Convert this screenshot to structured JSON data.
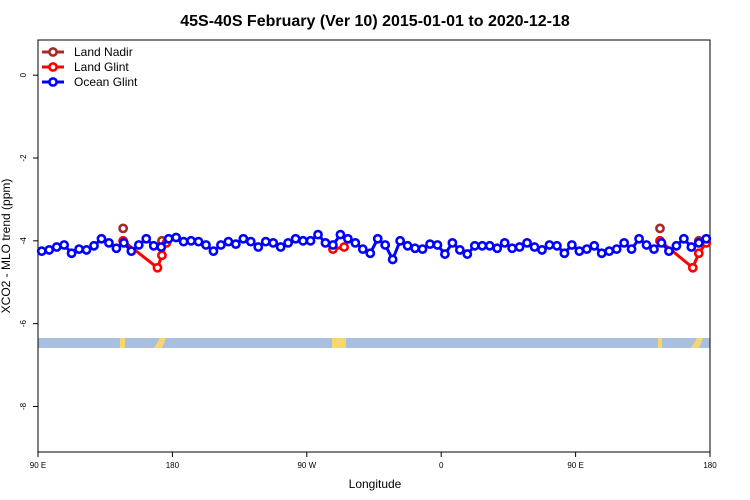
{
  "chart_data": {
    "type": "line",
    "title": "45S-40S February (Ver 10)   2015-01-01 to 2020-12-18",
    "x_label": "Longitude",
    "y_label": "XCO2 - MLO trend (ppm)",
    "xlim": [
      90,
      540
    ],
    "xticks": [
      {
        "value": 90,
        "label": "90 E"
      },
      {
        "value": 180,
        "label": "180"
      },
      {
        "value": 270,
        "label": "90 W"
      },
      {
        "value": 360,
        "label": "0"
      },
      {
        "value": 450,
        "label": "90 E"
      },
      {
        "value": 540,
        "label": "180"
      }
    ],
    "ylim": [
      -9.1,
      0.85
    ],
    "yticks": [
      0,
      -2,
      -4,
      -6,
      -8
    ],
    "legend": "top-left",
    "series": [
      {
        "name": "Land Nadir",
        "color": "#a52a2a",
        "x": [
          147,
          160,
          173,
          490,
          506.5,
          520,
          532.5
        ],
        "values": [
          -3.7,
          null,
          -4.0,
          null,
          -3.7,
          null,
          -4.0
        ]
      },
      {
        "name": "Land Glint",
        "color": "#ff0000",
        "x": [
          147,
          170,
          173,
          176,
          230,
          287.5,
          295,
          400,
          506.5,
          528.5,
          532.5,
          537.5
        ],
        "values": [
          -4.0,
          -4.65,
          -4.35,
          -4.05,
          null,
          -4.2,
          -4.15,
          null,
          -4.0,
          -4.65,
          -4.3,
          -4.05
        ]
      },
      {
        "name": "Ocean Glint",
        "color": "#0000ff",
        "x": [
          92.5,
          97.5,
          102.5,
          107.5,
          112.5,
          117.5,
          122.5,
          127.5,
          132.5,
          137.5,
          142.5,
          147.5,
          152.5,
          157.5,
          162.5,
          167.5,
          172.5,
          177.5,
          182.5,
          187.5,
          192.5,
          197.5,
          202.5,
          207.5,
          212.5,
          217.5,
          222.5,
          227.5,
          232.5,
          237.5,
          242.5,
          247.5,
          252.5,
          257.5,
          262.5,
          267.5,
          272.5,
          277.5,
          282.5,
          287.5,
          292.5,
          297.5,
          302.5,
          307.5,
          312.5,
          317.5,
          322.5,
          327.5,
          332.5,
          337.5,
          342.5,
          347.5,
          352.5,
          357.5,
          362.5,
          367.5,
          372.5,
          377.5,
          382.5,
          387.5,
          392.5,
          397.5,
          402.5,
          407.5,
          412.5,
          417.5,
          422.5,
          427.5,
          432.5,
          437.5,
          442.5,
          447.5,
          452.5,
          457.5,
          462.5,
          467.5,
          472.5,
          477.5,
          482.5,
          487.5,
          492.5,
          497.5,
          502.5,
          507.5,
          512.5,
          517.5,
          522.5,
          527.5,
          532.5,
          537.5
        ],
        "values": [
          -4.25,
          -4.22,
          -4.15,
          -4.1,
          -4.3,
          -4.2,
          -4.22,
          -4.12,
          -3.95,
          -4.05,
          -4.18,
          -4.05,
          -4.25,
          -4.1,
          -3.95,
          -4.12,
          -4.15,
          -3.95,
          -3.92,
          -4.02,
          -4.0,
          -4.02,
          -4.1,
          -4.25,
          -4.1,
          -4.02,
          -4.08,
          -3.95,
          -4.02,
          -4.15,
          -4.02,
          -4.05,
          -4.15,
          -4.05,
          -3.95,
          -4.0,
          -4.0,
          -3.85,
          -4.05,
          -4.1,
          -3.85,
          -3.95,
          -4.05,
          -4.2,
          -4.3,
          -3.95,
          -4.1,
          -4.45,
          -4.0,
          -4.12,
          -4.18,
          -4.2,
          -4.08,
          -4.1,
          -4.32,
          -4.05,
          -4.22,
          -4.32,
          -4.12,
          -4.12,
          -4.12,
          -4.18,
          -4.05,
          -4.18,
          -4.15,
          -4.05,
          -4.15,
          -4.22,
          -4.1,
          -4.12,
          -4.3,
          -4.1,
          -4.25,
          -4.2,
          -4.12,
          -4.3,
          -4.25,
          -4.2,
          -4.05,
          -4.2,
          -3.95,
          -4.1,
          -4.2,
          -4.05,
          -4.25,
          -4.12,
          -3.95,
          -4.15,
          -4.05,
          -3.95
        ]
      }
    ]
  }
}
